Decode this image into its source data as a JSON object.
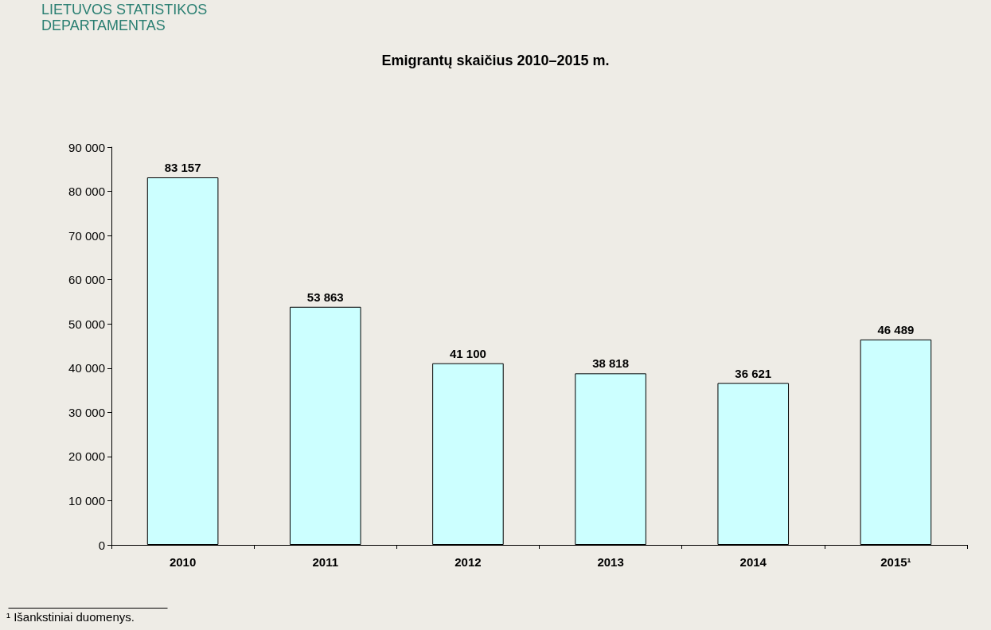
{
  "chart_data": {
    "type": "bar",
    "title": "Emigrantų skaičius 2010–2015 m.",
    "categories": [
      "2010",
      "2011",
      "2012",
      "2013",
      "2014",
      "2015¹"
    ],
    "values": [
      83157,
      53863,
      41100,
      38818,
      36621,
      46489
    ],
    "value_labels": [
      "83 157",
      "53 863",
      "41 100",
      "38 818",
      "36 621",
      "46 489"
    ],
    "color": "#ccffff",
    "ylim": [
      0,
      90000
    ],
    "yticks": [
      {
        "value": 0,
        "label": "0"
      },
      {
        "value": 10000,
        "label": "10 000"
      },
      {
        "value": 20000,
        "label": "20 000"
      },
      {
        "value": 30000,
        "label": "30 000"
      },
      {
        "value": 40000,
        "label": "40 000"
      },
      {
        "value": 50000,
        "label": "50 000"
      },
      {
        "value": 60000,
        "label": "60 000"
      },
      {
        "value": 70000,
        "label": "70 000"
      },
      {
        "value": 80000,
        "label": "80 000"
      },
      {
        "value": 90000,
        "label": "90 000"
      }
    ],
    "grid": false,
    "annotations": [
      "LIETUVOS STATISTIKOS\nDEPARTAMENTAS",
      "¹ Išankstiniai duomenys."
    ]
  }
}
